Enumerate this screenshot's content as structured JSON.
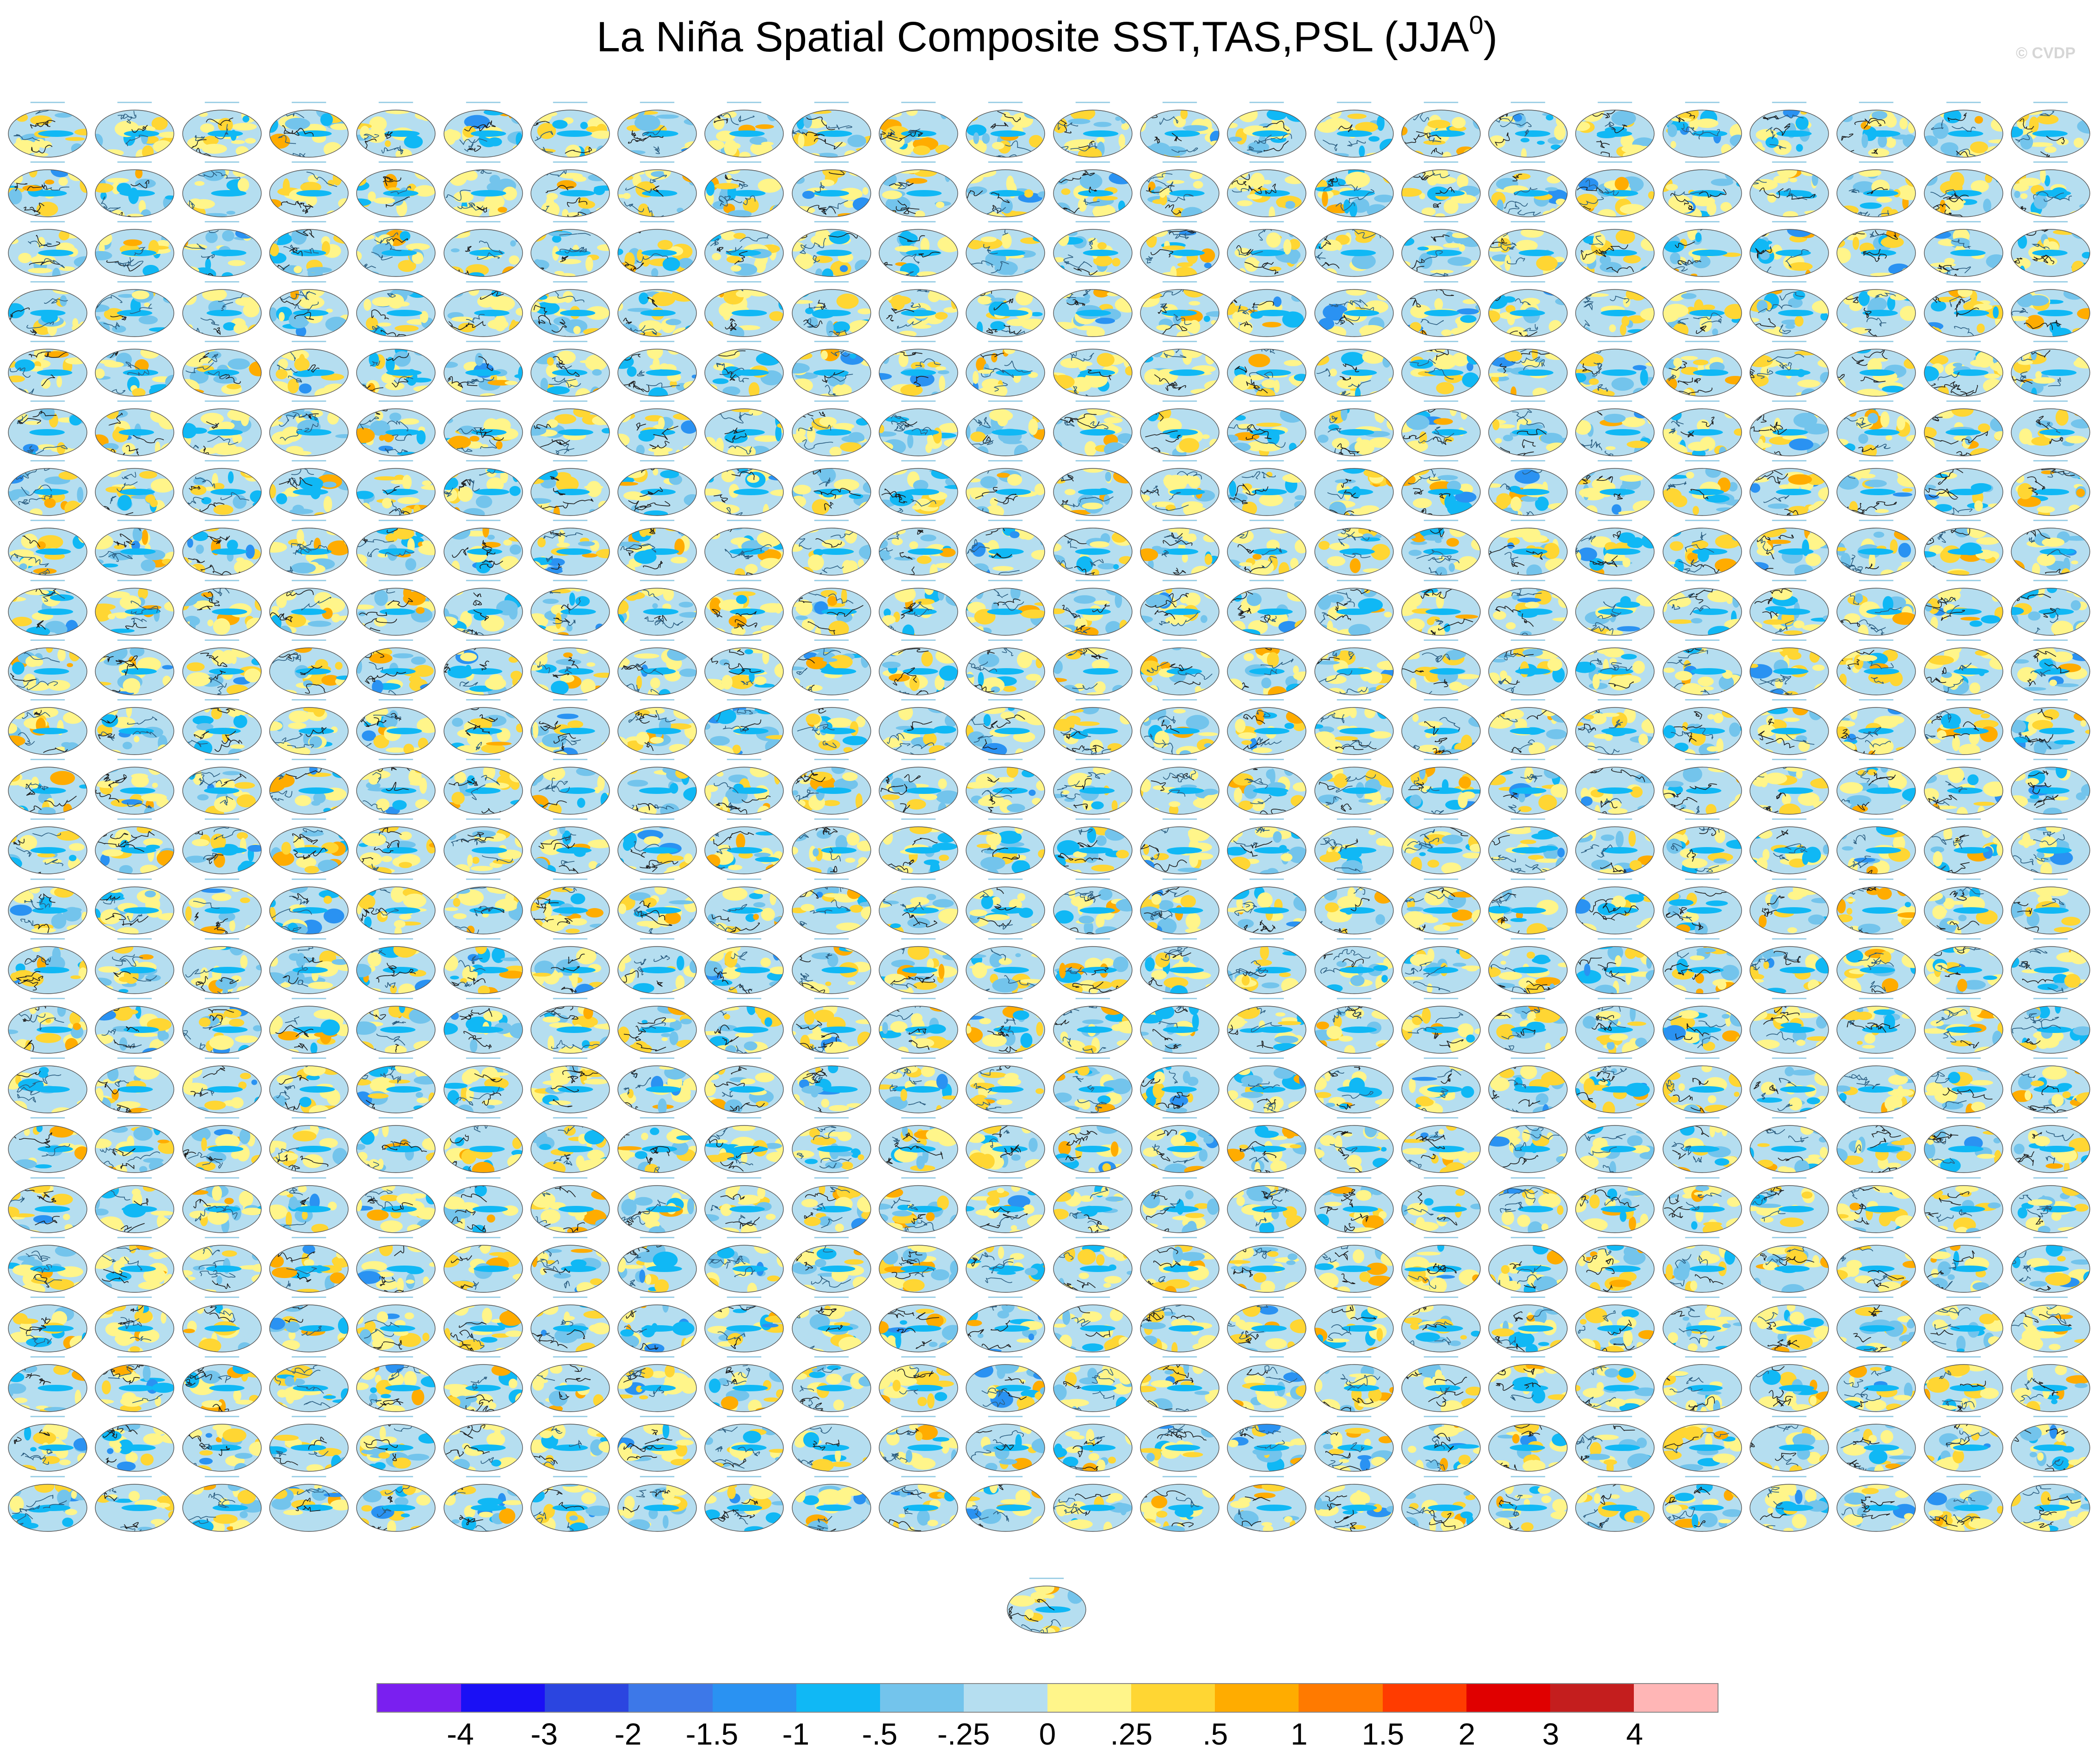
{
  "title": {
    "text": "La Niña Spatial Composite SST,TAS,PSL (JJA",
    "superscript": "0",
    "close": ")"
  },
  "watermark": "© CVDP",
  "panels": {
    "columns": 24,
    "rows": 24,
    "extra_bottom_panels": 1,
    "total": 577
  },
  "colorbar": {
    "colors": [
      "#7a1ff0",
      "#1a10f5",
      "#2b45e0",
      "#3d78e8",
      "#2a92f2",
      "#10b8f5",
      "#73c4ec",
      "#b5def0",
      "#fff58a",
      "#ffd633",
      "#ffac00",
      "#ff7a00",
      "#ff3c00",
      "#e00000",
      "#c41e1e",
      "#ffb6b6"
    ],
    "labels": [
      "-4",
      "-3",
      "-2",
      "-1.5",
      "-1",
      "-.5",
      "-.25",
      "0",
      ".25",
      ".5",
      "1",
      "1.5",
      "2",
      "3",
      "4"
    ]
  }
}
